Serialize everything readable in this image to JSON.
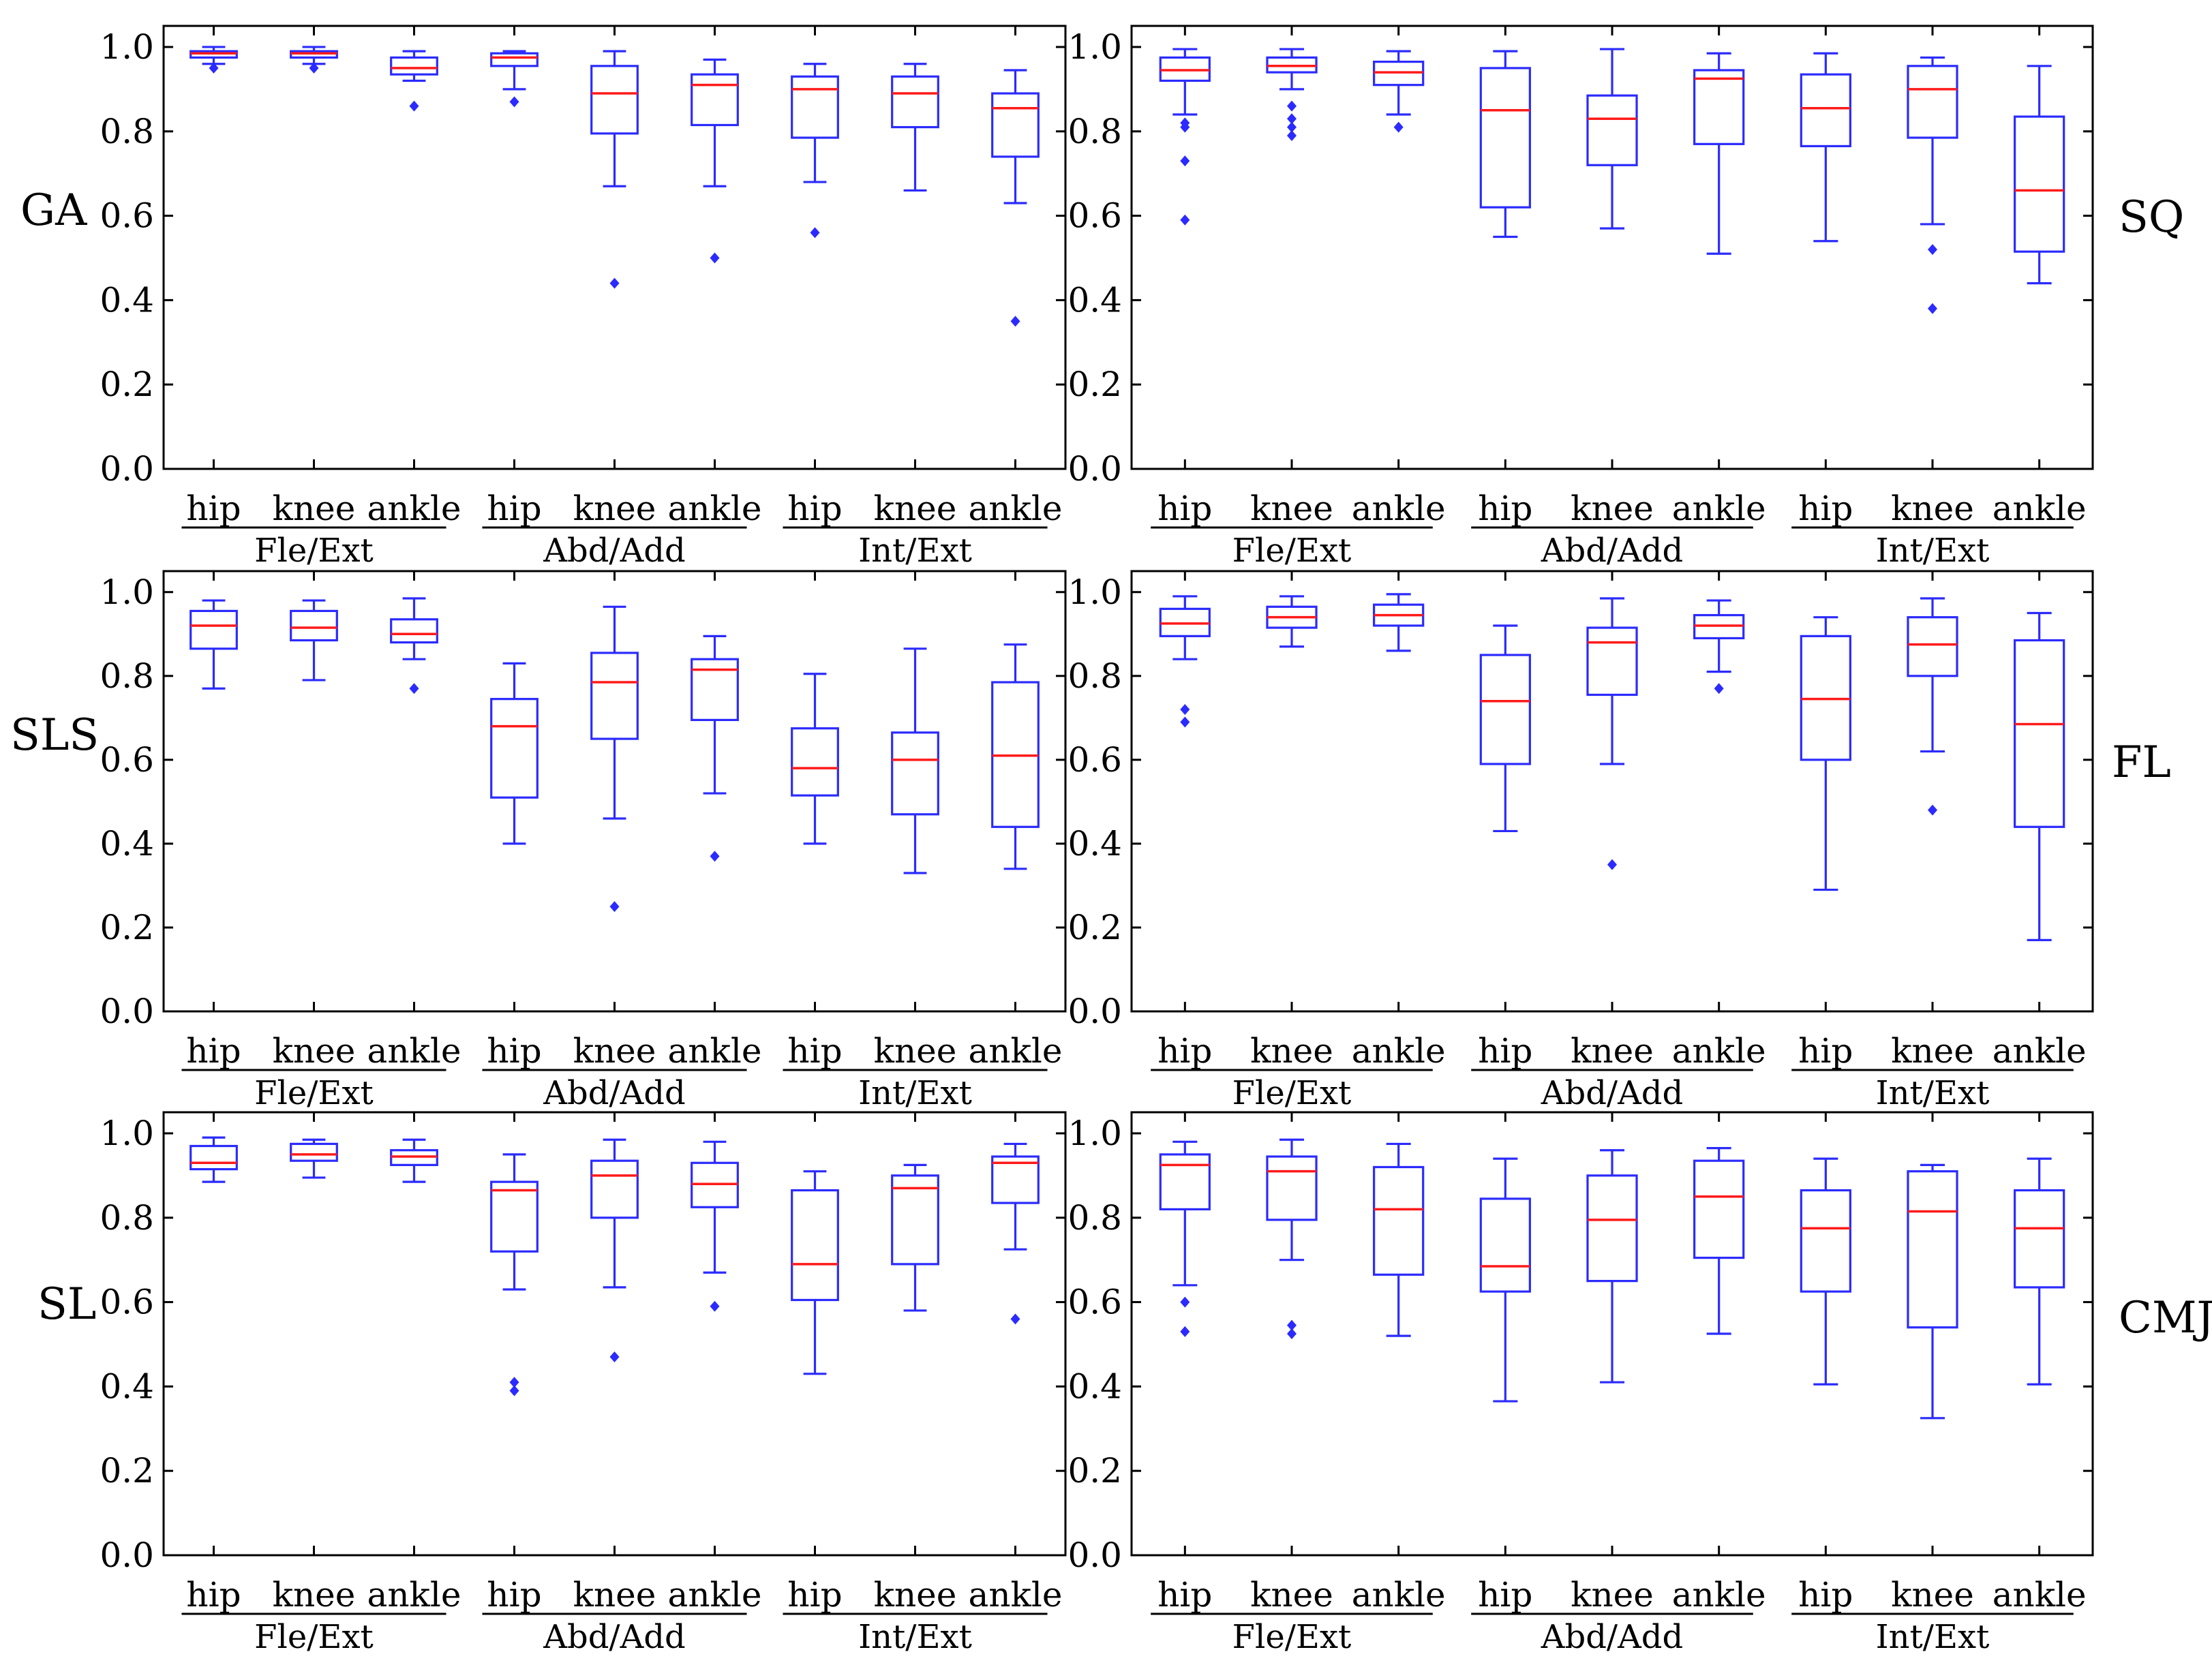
{
  "chart_data": [
    {
      "type": "box",
      "panel_label": "GA",
      "label_side": "left",
      "ylim": [
        0,
        1.05
      ],
      "yticks": [
        "1.0",
        "0.8",
        "0.6",
        "0.4",
        "0.2",
        "0.0"
      ],
      "ytick_values": [
        1.0,
        0.8,
        0.6,
        0.4,
        0.2,
        0.0
      ],
      "groups": [
        "Fle/Ext",
        "Abd/Add",
        "Int/Ext"
      ],
      "joints": [
        "hip",
        "knee",
        "ankle",
        "hip",
        "knee",
        "ankle",
        "hip",
        "knee",
        "ankle"
      ],
      "boxes": [
        {
          "joint": "hip",
          "group": "Fle/Ext",
          "min": 0.96,
          "q1": 0.975,
          "median": 0.985,
          "q3": 0.99,
          "max": 1.0,
          "outliers": [
            0.95
          ]
        },
        {
          "joint": "knee",
          "group": "Fle/Ext",
          "min": 0.96,
          "q1": 0.975,
          "median": 0.985,
          "q3": 0.99,
          "max": 1.0,
          "outliers": [
            0.95
          ]
        },
        {
          "joint": "ankle",
          "group": "Fle/Ext",
          "min": 0.92,
          "q1": 0.935,
          "median": 0.95,
          "q3": 0.975,
          "max": 0.99,
          "outliers": [
            0.86
          ]
        },
        {
          "joint": "hip",
          "group": "Abd/Add",
          "min": 0.9,
          "q1": 0.955,
          "median": 0.975,
          "q3": 0.985,
          "max": 0.99,
          "outliers": [
            0.87
          ]
        },
        {
          "joint": "knee",
          "group": "Abd/Add",
          "min": 0.67,
          "q1": 0.795,
          "median": 0.89,
          "q3": 0.955,
          "max": 0.99,
          "outliers": [
            0.44
          ]
        },
        {
          "joint": "ankle",
          "group": "Abd/Add",
          "min": 0.67,
          "q1": 0.815,
          "median": 0.91,
          "q3": 0.935,
          "max": 0.97,
          "outliers": [
            0.5
          ]
        },
        {
          "joint": "hip",
          "group": "Int/Ext",
          "min": 0.68,
          "q1": 0.785,
          "median": 0.9,
          "q3": 0.93,
          "max": 0.96,
          "outliers": [
            0.56
          ]
        },
        {
          "joint": "knee",
          "group": "Int/Ext",
          "min": 0.66,
          "q1": 0.81,
          "median": 0.89,
          "q3": 0.93,
          "max": 0.96,
          "outliers": []
        },
        {
          "joint": "ankle",
          "group": "Int/Ext",
          "min": 0.63,
          "q1": 0.74,
          "median": 0.855,
          "q3": 0.89,
          "max": 0.945,
          "outliers": [
            0.35
          ]
        }
      ]
    },
    {
      "type": "box",
      "panel_label": "SQ",
      "label_side": "right",
      "ylim": [
        0,
        1.05
      ],
      "yticks": [
        "1.0",
        "0.8",
        "0.6",
        "0.4",
        "0.2",
        "0.0"
      ],
      "ytick_values": [
        1.0,
        0.8,
        0.6,
        0.4,
        0.2,
        0.0
      ],
      "groups": [
        "Fle/Ext",
        "Abd/Add",
        "Int/Ext"
      ],
      "joints": [
        "hip",
        "knee",
        "ankle",
        "hip",
        "knee",
        "ankle",
        "hip",
        "knee",
        "ankle"
      ],
      "boxes": [
        {
          "joint": "hip",
          "group": "Fle/Ext",
          "min": 0.84,
          "q1": 0.92,
          "median": 0.945,
          "q3": 0.975,
          "max": 0.995,
          "outliers": [
            0.82,
            0.81,
            0.73,
            0.59
          ]
        },
        {
          "joint": "knee",
          "group": "Fle/Ext",
          "min": 0.9,
          "q1": 0.94,
          "median": 0.955,
          "q3": 0.975,
          "max": 0.995,
          "outliers": [
            0.86,
            0.83,
            0.81,
            0.79
          ]
        },
        {
          "joint": "ankle",
          "group": "Fle/Ext",
          "min": 0.84,
          "q1": 0.91,
          "median": 0.94,
          "q3": 0.965,
          "max": 0.99,
          "outliers": [
            0.81
          ]
        },
        {
          "joint": "hip",
          "group": "Abd/Add",
          "min": 0.55,
          "q1": 0.62,
          "median": 0.85,
          "q3": 0.95,
          "max": 0.99,
          "outliers": []
        },
        {
          "joint": "knee",
          "group": "Abd/Add",
          "min": 0.57,
          "q1": 0.72,
          "median": 0.83,
          "q3": 0.885,
          "max": 0.995,
          "outliers": []
        },
        {
          "joint": "ankle",
          "group": "Abd/Add",
          "min": 0.51,
          "q1": 0.77,
          "median": 0.925,
          "q3": 0.945,
          "max": 0.985,
          "outliers": []
        },
        {
          "joint": "hip",
          "group": "Int/Ext",
          "min": 0.54,
          "q1": 0.765,
          "median": 0.855,
          "q3": 0.935,
          "max": 0.985,
          "outliers": []
        },
        {
          "joint": "knee",
          "group": "Int/Ext",
          "min": 0.58,
          "q1": 0.785,
          "median": 0.9,
          "q3": 0.955,
          "max": 0.975,
          "outliers": [
            0.52,
            0.38
          ]
        },
        {
          "joint": "ankle",
          "group": "Int/Ext",
          "min": 0.44,
          "q1": 0.515,
          "median": 0.66,
          "q3": 0.835,
          "max": 0.955,
          "outliers": []
        }
      ]
    },
    {
      "type": "box",
      "panel_label": "SLS",
      "label_side": "left",
      "ylim": [
        0,
        1.05
      ],
      "yticks": [
        "1.0",
        "0.8",
        "0.6",
        "0.4",
        "0.2",
        "0.0"
      ],
      "ytick_values": [
        1.0,
        0.8,
        0.6,
        0.4,
        0.2,
        0.0
      ],
      "groups": [
        "Fle/Ext",
        "Abd/Add",
        "Int/Ext"
      ],
      "joints": [
        "hip",
        "knee",
        "ankle",
        "hip",
        "knee",
        "ankle",
        "hip",
        "knee",
        "ankle"
      ],
      "boxes": [
        {
          "joint": "hip",
          "group": "Fle/Ext",
          "min": 0.77,
          "q1": 0.865,
          "median": 0.92,
          "q3": 0.955,
          "max": 0.98,
          "outliers": []
        },
        {
          "joint": "knee",
          "group": "Fle/Ext",
          "min": 0.79,
          "q1": 0.885,
          "median": 0.915,
          "q3": 0.955,
          "max": 0.98,
          "outliers": []
        },
        {
          "joint": "ankle",
          "group": "Fle/Ext",
          "min": 0.84,
          "q1": 0.88,
          "median": 0.9,
          "q3": 0.935,
          "max": 0.985,
          "outliers": [
            0.77
          ]
        },
        {
          "joint": "hip",
          "group": "Abd/Add",
          "min": 0.4,
          "q1": 0.51,
          "median": 0.68,
          "q3": 0.745,
          "max": 0.83,
          "outliers": []
        },
        {
          "joint": "knee",
          "group": "Abd/Add",
          "min": 0.46,
          "q1": 0.65,
          "median": 0.785,
          "q3": 0.855,
          "max": 0.965,
          "outliers": [
            0.25
          ]
        },
        {
          "joint": "ankle",
          "group": "Abd/Add",
          "min": 0.52,
          "q1": 0.695,
          "median": 0.815,
          "q3": 0.84,
          "max": 0.895,
          "outliers": [
            0.37
          ]
        },
        {
          "joint": "hip",
          "group": "Int/Ext",
          "min": 0.4,
          "q1": 0.515,
          "median": 0.58,
          "q3": 0.675,
          "max": 0.805,
          "outliers": []
        },
        {
          "joint": "knee",
          "group": "Int/Ext",
          "min": 0.33,
          "q1": 0.47,
          "median": 0.6,
          "q3": 0.665,
          "max": 0.865,
          "outliers": []
        },
        {
          "joint": "ankle",
          "group": "Int/Ext",
          "min": 0.34,
          "q1": 0.44,
          "median": 0.61,
          "q3": 0.785,
          "max": 0.875,
          "outliers": []
        }
      ]
    },
    {
      "type": "box",
      "panel_label": "FL",
      "label_side": "right",
      "ylim": [
        0,
        1.05
      ],
      "yticks": [
        "1.0",
        "0.8",
        "0.6",
        "0.4",
        "0.2",
        "0.0"
      ],
      "ytick_values": [
        1.0,
        0.8,
        0.6,
        0.4,
        0.2,
        0.0
      ],
      "groups": [
        "Fle/Ext",
        "Abd/Add",
        "Int/Ext"
      ],
      "joints": [
        "hip",
        "knee",
        "ankle",
        "hip",
        "knee",
        "ankle",
        "hip",
        "knee",
        "ankle"
      ],
      "boxes": [
        {
          "joint": "hip",
          "group": "Fle/Ext",
          "min": 0.84,
          "q1": 0.895,
          "median": 0.925,
          "q3": 0.96,
          "max": 0.99,
          "outliers": [
            0.72,
            0.69
          ]
        },
        {
          "joint": "knee",
          "group": "Fle/Ext",
          "min": 0.87,
          "q1": 0.915,
          "median": 0.94,
          "q3": 0.965,
          "max": 0.99,
          "outliers": []
        },
        {
          "joint": "ankle",
          "group": "Fle/Ext",
          "min": 0.86,
          "q1": 0.92,
          "median": 0.945,
          "q3": 0.97,
          "max": 0.995,
          "outliers": []
        },
        {
          "joint": "hip",
          "group": "Abd/Add",
          "min": 0.43,
          "q1": 0.59,
          "median": 0.74,
          "q3": 0.85,
          "max": 0.92,
          "outliers": []
        },
        {
          "joint": "knee",
          "group": "Abd/Add",
          "min": 0.59,
          "q1": 0.755,
          "median": 0.88,
          "q3": 0.915,
          "max": 0.985,
          "outliers": [
            0.35
          ]
        },
        {
          "joint": "ankle",
          "group": "Abd/Add",
          "min": 0.81,
          "q1": 0.89,
          "median": 0.92,
          "q3": 0.945,
          "max": 0.98,
          "outliers": [
            0.77
          ]
        },
        {
          "joint": "hip",
          "group": "Int/Ext",
          "min": 0.29,
          "q1": 0.6,
          "median": 0.745,
          "q3": 0.895,
          "max": 0.94,
          "outliers": []
        },
        {
          "joint": "knee",
          "group": "Int/Ext",
          "min": 0.62,
          "q1": 0.8,
          "median": 0.875,
          "q3": 0.94,
          "max": 0.985,
          "outliers": [
            0.48
          ]
        },
        {
          "joint": "ankle",
          "group": "Int/Ext",
          "min": 0.17,
          "q1": 0.44,
          "median": 0.685,
          "q3": 0.885,
          "max": 0.95,
          "outliers": []
        }
      ]
    },
    {
      "type": "box",
      "panel_label": "SL",
      "label_side": "left",
      "ylim": [
        0,
        1.05
      ],
      "yticks": [
        "1.0",
        "0.8",
        "0.6",
        "0.4",
        "0.2",
        "0.0"
      ],
      "ytick_values": [
        1.0,
        0.8,
        0.6,
        0.4,
        0.2,
        0.0
      ],
      "groups": [
        "Fle/Ext",
        "Abd/Add",
        "Int/Ext"
      ],
      "joints": [
        "hip",
        "knee",
        "ankle",
        "hip",
        "knee",
        "ankle",
        "hip",
        "knee",
        "ankle"
      ],
      "boxes": [
        {
          "joint": "hip",
          "group": "Fle/Ext",
          "min": 0.885,
          "q1": 0.915,
          "median": 0.93,
          "q3": 0.97,
          "max": 0.99,
          "outliers": []
        },
        {
          "joint": "knee",
          "group": "Fle/Ext",
          "min": 0.895,
          "q1": 0.935,
          "median": 0.95,
          "q3": 0.975,
          "max": 0.985,
          "outliers": []
        },
        {
          "joint": "ankle",
          "group": "Fle/Ext",
          "min": 0.885,
          "q1": 0.925,
          "median": 0.945,
          "q3": 0.96,
          "max": 0.985,
          "outliers": []
        },
        {
          "joint": "hip",
          "group": "Abd/Add",
          "min": 0.63,
          "q1": 0.72,
          "median": 0.865,
          "q3": 0.885,
          "max": 0.95,
          "outliers": [
            0.41,
            0.39
          ]
        },
        {
          "joint": "knee",
          "group": "Abd/Add",
          "min": 0.635,
          "q1": 0.8,
          "median": 0.9,
          "q3": 0.935,
          "max": 0.985,
          "outliers": [
            0.47
          ]
        },
        {
          "joint": "ankle",
          "group": "Abd/Add",
          "min": 0.67,
          "q1": 0.825,
          "median": 0.88,
          "q3": 0.93,
          "max": 0.98,
          "outliers": [
            0.59
          ]
        },
        {
          "joint": "hip",
          "group": "Int/Ext",
          "min": 0.43,
          "q1": 0.605,
          "median": 0.69,
          "q3": 0.865,
          "max": 0.91,
          "outliers": []
        },
        {
          "joint": "knee",
          "group": "Int/Ext",
          "min": 0.58,
          "q1": 0.69,
          "median": 0.87,
          "q3": 0.9,
          "max": 0.925,
          "outliers": []
        },
        {
          "joint": "ankle",
          "group": "Int/Ext",
          "min": 0.725,
          "q1": 0.835,
          "median": 0.93,
          "q3": 0.945,
          "max": 0.975,
          "outliers": [
            0.56
          ]
        }
      ]
    },
    {
      "type": "box",
      "panel_label": "CMJ",
      "label_side": "right",
      "ylim": [
        0,
        1.05
      ],
      "yticks": [
        "1.0",
        "0.8",
        "0.6",
        "0.4",
        "0.2",
        "0.0"
      ],
      "ytick_values": [
        1.0,
        0.8,
        0.6,
        0.4,
        0.2,
        0.0
      ],
      "groups": [
        "Fle/Ext",
        "Abd/Add",
        "Int/Ext"
      ],
      "joints": [
        "hip",
        "knee",
        "ankle",
        "hip",
        "knee",
        "ankle",
        "hip",
        "knee",
        "ankle"
      ],
      "boxes": [
        {
          "joint": "hip",
          "group": "Fle/Ext",
          "min": 0.64,
          "q1": 0.82,
          "median": 0.925,
          "q3": 0.95,
          "max": 0.98,
          "outliers": [
            0.6,
            0.53
          ]
        },
        {
          "joint": "knee",
          "group": "Fle/Ext",
          "min": 0.7,
          "q1": 0.795,
          "median": 0.91,
          "q3": 0.945,
          "max": 0.985,
          "outliers": [
            0.545,
            0.525
          ]
        },
        {
          "joint": "ankle",
          "group": "Fle/Ext",
          "min": 0.52,
          "q1": 0.665,
          "median": 0.82,
          "q3": 0.92,
          "max": 0.975,
          "outliers": []
        },
        {
          "joint": "hip",
          "group": "Abd/Add",
          "min": 0.365,
          "q1": 0.625,
          "median": 0.685,
          "q3": 0.845,
          "max": 0.94,
          "outliers": []
        },
        {
          "joint": "knee",
          "group": "Abd/Add",
          "min": 0.41,
          "q1": 0.65,
          "median": 0.795,
          "q3": 0.9,
          "max": 0.96,
          "outliers": []
        },
        {
          "joint": "ankle",
          "group": "Abd/Add",
          "min": 0.525,
          "q1": 0.705,
          "median": 0.85,
          "q3": 0.935,
          "max": 0.965,
          "outliers": []
        },
        {
          "joint": "hip",
          "group": "Int/Ext",
          "min": 0.405,
          "q1": 0.625,
          "median": 0.775,
          "q3": 0.865,
          "max": 0.94,
          "outliers": []
        },
        {
          "joint": "knee",
          "group": "Int/Ext",
          "min": 0.325,
          "q1": 0.54,
          "median": 0.815,
          "q3": 0.91,
          "max": 0.925,
          "outliers": []
        },
        {
          "joint": "ankle",
          "group": "Int/Ext",
          "min": 0.405,
          "q1": 0.635,
          "median": 0.775,
          "q3": 0.865,
          "max": 0.94,
          "outliers": []
        }
      ]
    }
  ],
  "colors": {
    "box": "#2b2bff",
    "median": "#ff1a1a",
    "axis": "#000000"
  }
}
